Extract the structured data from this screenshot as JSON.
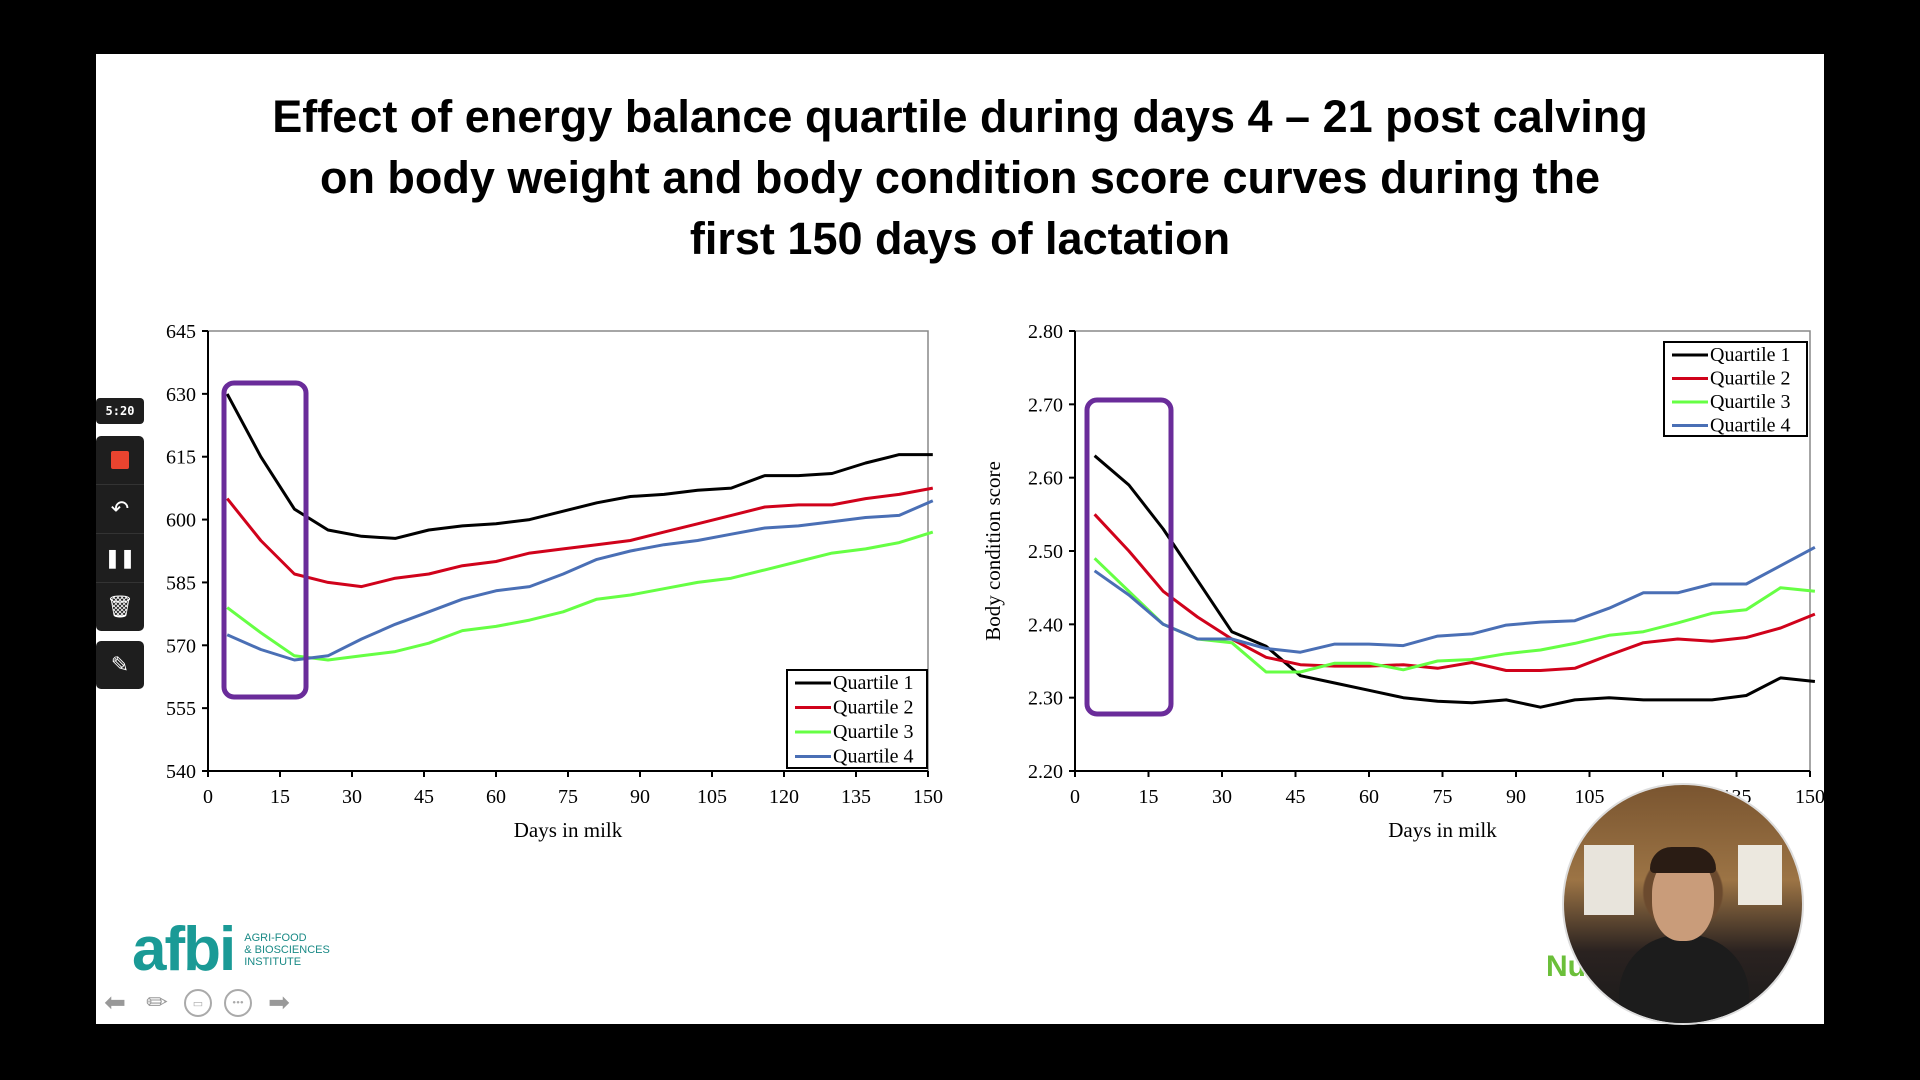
{
  "title_lines": [
    "Effect of energy balance quartile during days 4 – 21 post calving",
    "on body weight and body condition score curves during the",
    "first 150 days of lactation"
  ],
  "toolbar": {
    "timer": "5:20",
    "buttons": [
      "stop",
      "undo",
      "pause",
      "delete",
      "pen"
    ]
  },
  "logo": {
    "mark": "afbi",
    "sub_lines": [
      "AGRI-FOOD",
      "& BIOSCIENCES",
      "INSTITUTE"
    ]
  },
  "navbar": [
    "previous",
    "pen",
    "subtitles",
    "more",
    "next"
  ],
  "webcam_text": "Nu",
  "colors": {
    "Quartile 1": "#000000",
    "Quartile 2": "#d0021b",
    "Quartile 3": "#66ff44",
    "Quartile 4": "#4a6fb5",
    "highlight": "#6a2c9a"
  },
  "chart_data": [
    {
      "type": "line",
      "title": "",
      "xlabel": "Days in milk",
      "ylabel": "",
      "xlim": [
        0,
        150
      ],
      "ylim": [
        540,
        645
      ],
      "xticks": [
        0,
        15,
        30,
        45,
        60,
        75,
        90,
        105,
        120,
        135,
        150
      ],
      "yticks": [
        540,
        555,
        570,
        585,
        600,
        615,
        630,
        645
      ],
      "ytick_labels": [
        "540",
        "555",
        "570",
        "585",
        "600",
        "615",
        "630",
        "645"
      ],
      "legend_position": "bottom-right",
      "highlight_x_range": [
        4,
        21
      ],
      "x": [
        4,
        11,
        18,
        25,
        32,
        39,
        46,
        53,
        60,
        67,
        74,
        81,
        88,
        95,
        102,
        109,
        116,
        123,
        130,
        137,
        144,
        151
      ],
      "series": [
        {
          "name": "Quartile 1",
          "values": [
            630,
            615,
            602.5,
            597.5,
            596,
            595.5,
            597.5,
            598.5,
            599,
            600,
            602,
            604,
            605.5,
            606,
            607,
            607.5,
            610.5,
            610.5,
            611,
            613.5,
            615.5,
            615.5
          ]
        },
        {
          "name": "Quartile 2",
          "values": [
            605,
            595,
            587,
            585,
            584,
            586,
            587,
            589,
            590,
            592,
            593,
            594,
            595,
            597,
            599,
            601,
            603,
            603.5,
            603.5,
            605,
            606,
            607.5
          ]
        },
        {
          "name": "Quartile 3",
          "values": [
            579,
            573,
            567.5,
            566.5,
            567.5,
            568.5,
            570.5,
            573.5,
            574.5,
            576,
            578,
            581,
            582,
            583.5,
            585,
            586,
            588,
            590,
            592,
            593,
            594.5,
            597
          ]
        },
        {
          "name": "Quartile 4",
          "values": [
            572.5,
            569,
            566.5,
            567.5,
            571.5,
            575,
            578,
            581,
            583,
            584,
            587,
            590.5,
            592.5,
            594,
            595,
            596.5,
            598,
            598.5,
            599.5,
            600.5,
            601,
            604.5
          ]
        }
      ]
    },
    {
      "type": "line",
      "title": "",
      "xlabel": "Days in milk",
      "ylabel": "Body condition score",
      "xlim": [
        0,
        150
      ],
      "ylim": [
        2.2,
        2.8
      ],
      "xticks": [
        0,
        15,
        30,
        45,
        60,
        75,
        90,
        105,
        120,
        135,
        150
      ],
      "yticks": [
        2.2,
        2.3,
        2.4,
        2.5,
        2.6,
        2.7,
        2.8
      ],
      "ytick_labels": [
        "2.20",
        "2.30",
        "2.40",
        "2.50",
        "2.60",
        "2.70",
        "2.80"
      ],
      "legend_position": "top-right",
      "highlight_x_range": [
        4,
        21
      ],
      "x": [
        4,
        11,
        18,
        25,
        32,
        39,
        46,
        53,
        60,
        67,
        74,
        81,
        88,
        95,
        102,
        109,
        116,
        123,
        130,
        137,
        144,
        151
      ],
      "series": [
        {
          "name": "Quartile 1",
          "values": [
            2.63,
            2.59,
            2.53,
            2.46,
            2.39,
            2.37,
            2.33,
            2.32,
            2.31,
            2.3,
            2.295,
            2.293,
            2.297,
            2.287,
            2.297,
            2.3,
            2.297,
            2.297,
            2.297,
            2.303,
            2.327,
            2.322
          ]
        },
        {
          "name": "Quartile 2",
          "values": [
            2.55,
            2.5,
            2.445,
            2.41,
            2.38,
            2.355,
            2.345,
            2.343,
            2.343,
            2.345,
            2.34,
            2.348,
            2.337,
            2.337,
            2.34,
            2.358,
            2.375,
            2.38,
            2.377,
            2.382,
            2.395,
            2.414
          ]
        },
        {
          "name": "Quartile 3",
          "values": [
            2.49,
            2.445,
            2.4,
            2.38,
            2.375,
            2.335,
            2.335,
            2.347,
            2.347,
            2.338,
            2.35,
            2.352,
            2.36,
            2.365,
            2.374,
            2.385,
            2.39,
            2.402,
            2.415,
            2.42,
            2.45,
            2.445
          ]
        },
        {
          "name": "Quartile 4",
          "values": [
            2.473,
            2.44,
            2.4,
            2.38,
            2.38,
            2.367,
            2.362,
            2.373,
            2.373,
            2.371,
            2.384,
            2.387,
            2.399,
            2.403,
            2.405,
            2.422,
            2.443,
            2.443,
            2.455,
            2.455,
            2.48,
            2.505
          ]
        }
      ]
    }
  ]
}
